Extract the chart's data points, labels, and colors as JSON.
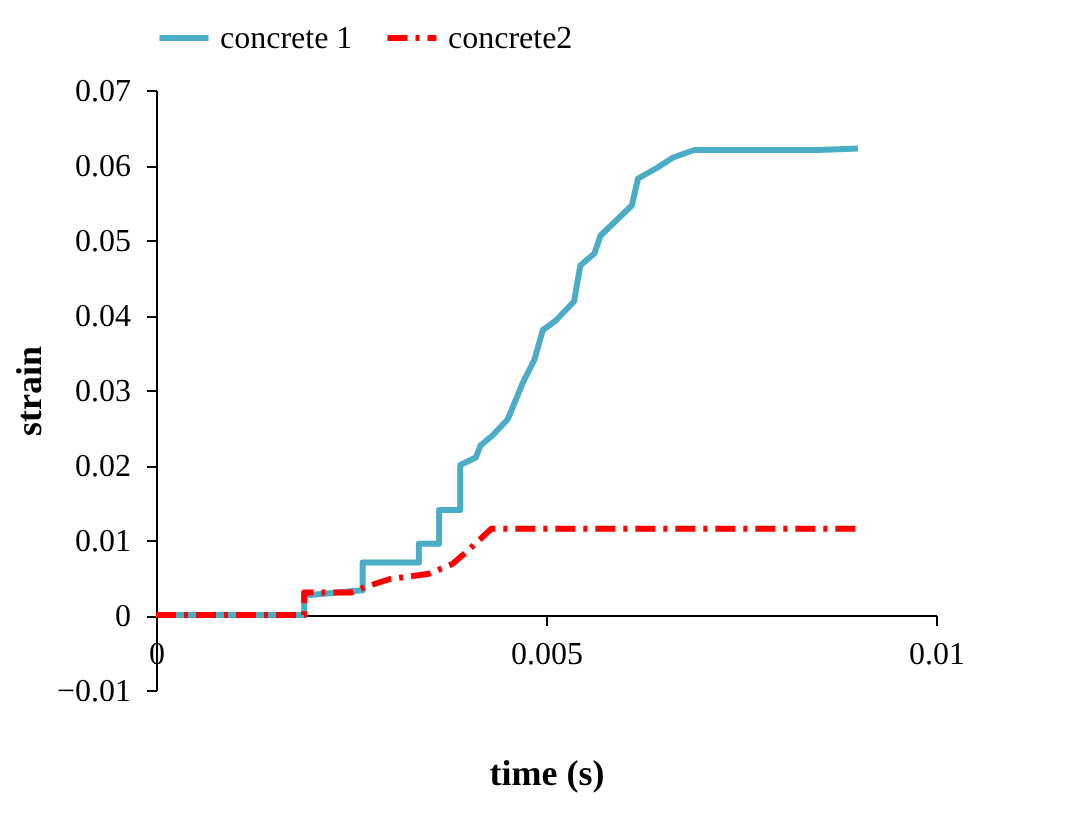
{
  "chart_data": {
    "type": "line",
    "xlabel": "time (s)",
    "ylabel": "strain",
    "xlim": [
      0,
      0.01
    ],
    "xticks": [
      0,
      0.005,
      0.01
    ],
    "ylim": [
      -0.01,
      0.07
    ],
    "yticks": [
      -0.01,
      0,
      0.01,
      0.02,
      0.03,
      0.04,
      0.05,
      0.06,
      0.07
    ],
    "grid": false,
    "legend": "top",
    "marker": "none",
    "series": [
      {
        "name": "concrete 1",
        "color": "#4bacc6",
        "line_style": "solid",
        "x": [
          0,
          0.0019,
          0.0019,
          0.00265,
          0.00265,
          0.00337,
          0.00337,
          0.00363,
          0.00363,
          0.0039,
          0.0039,
          0.0041,
          0.00416,
          0.00432,
          0.00451,
          0.0047,
          0.00485,
          0.00496,
          0.00512,
          0.00536,
          0.00544,
          0.00562,
          0.0057,
          0.00589,
          0.0061,
          0.00618,
          0.00642,
          0.00663,
          0.0069,
          0.0085,
          0.009
        ],
        "values": [
          0,
          0,
          0.0026,
          0.0033,
          0.007,
          0.007,
          0.0095,
          0.0095,
          0.014,
          0.014,
          0.02,
          0.021,
          0.0226,
          0.024,
          0.0261,
          0.0309,
          0.034,
          0.038,
          0.0392,
          0.0418,
          0.0466,
          0.0482,
          0.0506,
          0.0525,
          0.0546,
          0.0582,
          0.0596,
          0.061,
          0.062,
          0.062,
          0.0622
        ]
      },
      {
        "name": "concrete2",
        "color": "#ff0000",
        "line_style": "dashdot",
        "x": [
          0,
          0.0019,
          0.0019,
          0.0025,
          0.0027,
          0.003,
          0.0035,
          0.0038,
          0.004,
          0.0043,
          0.009
        ],
        "values": [
          0,
          0,
          0.003,
          0.003,
          0.0038,
          0.0048,
          0.0055,
          0.0068,
          0.0086,
          0.0115,
          0.0115
        ]
      }
    ]
  }
}
